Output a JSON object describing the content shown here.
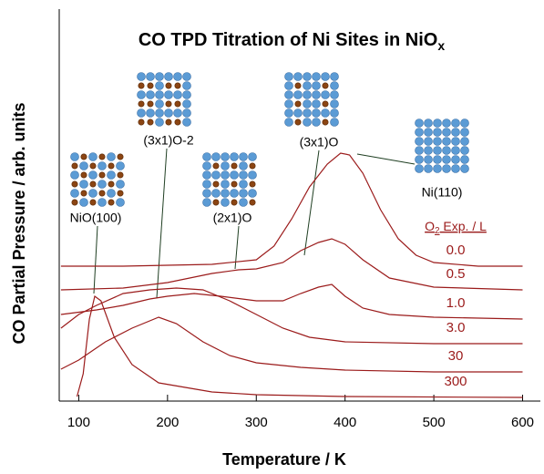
{
  "chart_data": {
    "type": "line",
    "title": {
      "main": "CO TPD Titration of Ni Sites in NiO",
      "sub": "x"
    },
    "x_label": "Temperature / K",
    "y_label": "CO Partial Pressure / arb. units",
    "legend_title": {
      "main": "O",
      "sub": "2",
      "tail": " Exp. / L"
    },
    "xlim": [
      78,
      620
    ],
    "xticks": [
      100,
      200,
      300,
      400,
      500,
      600
    ],
    "ylim": [
      0,
      430
    ],
    "series": [
      {
        "name": "0.0",
        "color": "#9b1b1b",
        "x": [
          80,
          150,
          200,
          250,
          300,
          320,
          340,
          360,
          380,
          395,
          405,
          420,
          440,
          460,
          480,
          500,
          550,
          600
        ],
        "values": [
          148,
          148,
          149,
          150,
          155,
          170,
          200,
          235,
          260,
          272,
          270,
          250,
          210,
          178,
          160,
          152,
          148,
          148
        ]
      },
      {
        "name": "0.5",
        "color": "#9b1b1b",
        "x": [
          80,
          150,
          200,
          250,
          280,
          300,
          330,
          350,
          370,
          385,
          400,
          420,
          450,
          500,
          600
        ],
        "values": [
          122,
          124,
          130,
          140,
          144,
          145,
          152,
          165,
          174,
          178,
          172,
          155,
          135,
          125,
          122
        ]
      },
      {
        "name": "1.0",
        "color": "#9b1b1b",
        "x": [
          80,
          120,
          150,
          180,
          200,
          230,
          260,
          300,
          330,
          350,
          370,
          385,
          400,
          420,
          450,
          500,
          600
        ],
        "values": [
          95,
          100,
          105,
          112,
          115,
          118,
          115,
          110,
          110,
          118,
          125,
          128,
          115,
          102,
          95,
          92,
          90
        ]
      },
      {
        "name": "3.0",
        "color": "#9b1b1b",
        "x": [
          80,
          100,
          120,
          150,
          180,
          210,
          240,
          270,
          300,
          330,
          360,
          400,
          500,
          600
        ],
        "values": [
          80,
          95,
          105,
          118,
          122,
          124,
          122,
          110,
          95,
          80,
          70,
          65,
          63,
          63
        ]
      },
      {
        "name": "30",
        "color": "#9b1b1b",
        "x": [
          80,
          100,
          130,
          160,
          190,
          210,
          240,
          270,
          300,
          350,
          400,
          500,
          600
        ],
        "values": [
          35,
          45,
          65,
          80,
          92,
          85,
          65,
          50,
          42,
          37,
          34,
          32,
          32
        ]
      },
      {
        "name": "300",
        "color": "#9b1b1b",
        "x": [
          98,
          105,
          112,
          118,
          125,
          140,
          160,
          190,
          250,
          300,
          400,
          600
        ],
        "values": [
          5,
          30,
          90,
          115,
          110,
          70,
          40,
          20,
          10,
          7,
          5,
          4
        ]
      }
    ],
    "annotations": [
      "NiO(100)",
      "(3x1)O-2",
      "(2x1)O",
      "(3x1)O",
      "Ni(110)"
    ]
  }
}
